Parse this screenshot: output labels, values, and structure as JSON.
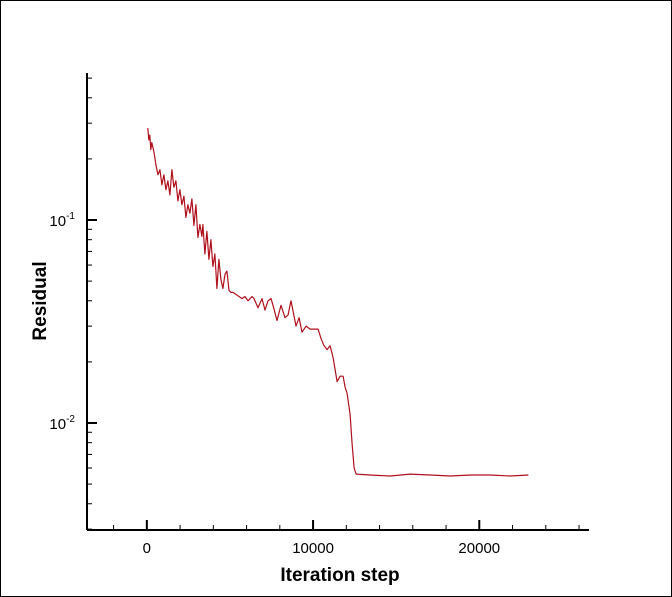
{
  "chart_data": {
    "type": "line",
    "title": "",
    "xlabel": "Iteration step",
    "ylabel": "Residual",
    "xscale": "linear",
    "yscale": "log",
    "xlim": [
      -3600,
      26600
    ],
    "ylim": [
      0.00297,
      0.53
    ],
    "x_ticks": [
      0,
      10000,
      20000
    ],
    "x_tick_labels": [
      "0",
      "10000",
      "20000"
    ],
    "x_minor_step": 2000,
    "y_ticks": [
      0.1,
      0.01
    ],
    "y_tick_labels": [
      {
        "base": "10",
        "exp": "-1"
      },
      {
        "base": "10",
        "exp": "-2"
      }
    ],
    "grid": false,
    "legend": null,
    "line_color": "#b0101c",
    "series": [
      {
        "name": "Residual",
        "x": [
          60,
          120,
          181,
          241,
          301,
          422,
          542,
          663,
          783,
          904,
          1024,
          1145,
          1265,
          1386,
          1506,
          1627,
          1747,
          1867,
          1988,
          2108,
          2229,
          2349,
          2470,
          2590,
          2711,
          2831,
          2952,
          3072,
          3193,
          3313,
          3373,
          3494,
          3614,
          3735,
          3855,
          3976,
          4096,
          4217,
          4337,
          4458,
          4578,
          4699,
          4819,
          4940,
          5060,
          5181,
          5361,
          5542,
          5723,
          5904,
          6084,
          6325,
          6446,
          6687,
          6928,
          7108,
          7289,
          7470,
          7590,
          7831,
          8072,
          8313,
          8494,
          8675,
          8976,
          9157,
          9337,
          9578,
          9819,
          10060,
          10301,
          10482,
          10663,
          10843,
          11024,
          11205,
          11446,
          11627,
          11807,
          11928,
          12048,
          12229,
          12349,
          12470,
          12590,
          13434,
          14639,
          15843,
          17048,
          18253,
          19458,
          20663,
          21867,
          22952
        ],
        "y": [
          0.284,
          0.248,
          0.262,
          0.222,
          0.241,
          0.217,
          0.187,
          0.167,
          0.177,
          0.149,
          0.167,
          0.141,
          0.156,
          0.133,
          0.177,
          0.145,
          0.156,
          0.124,
          0.141,
          0.119,
          0.131,
          0.103,
          0.119,
          0.108,
          0.127,
          0.094,
          0.119,
          0.082,
          0.095,
          0.083,
          0.095,
          0.068,
          0.088,
          0.064,
          0.08,
          0.059,
          0.068,
          0.046,
          0.064,
          0.051,
          0.046,
          0.054,
          0.056,
          0.045,
          0.044,
          0.044,
          0.043,
          0.042,
          0.041,
          0.042,
          0.04,
          0.042,
          0.041,
          0.037,
          0.041,
          0.036,
          0.04,
          0.041,
          0.038,
          0.032,
          0.038,
          0.033,
          0.034,
          0.04,
          0.03,
          0.033,
          0.028,
          0.03,
          0.029,
          0.029,
          0.029,
          0.026,
          0.024,
          0.023,
          0.024,
          0.021,
          0.016,
          0.017,
          0.017,
          0.015,
          0.014,
          0.011,
          0.0079,
          0.006,
          0.0056,
          0.00554,
          0.00548,
          0.0056,
          0.00554,
          0.00548,
          0.00554,
          0.00554,
          0.00548,
          0.00554
        ]
      }
    ]
  }
}
